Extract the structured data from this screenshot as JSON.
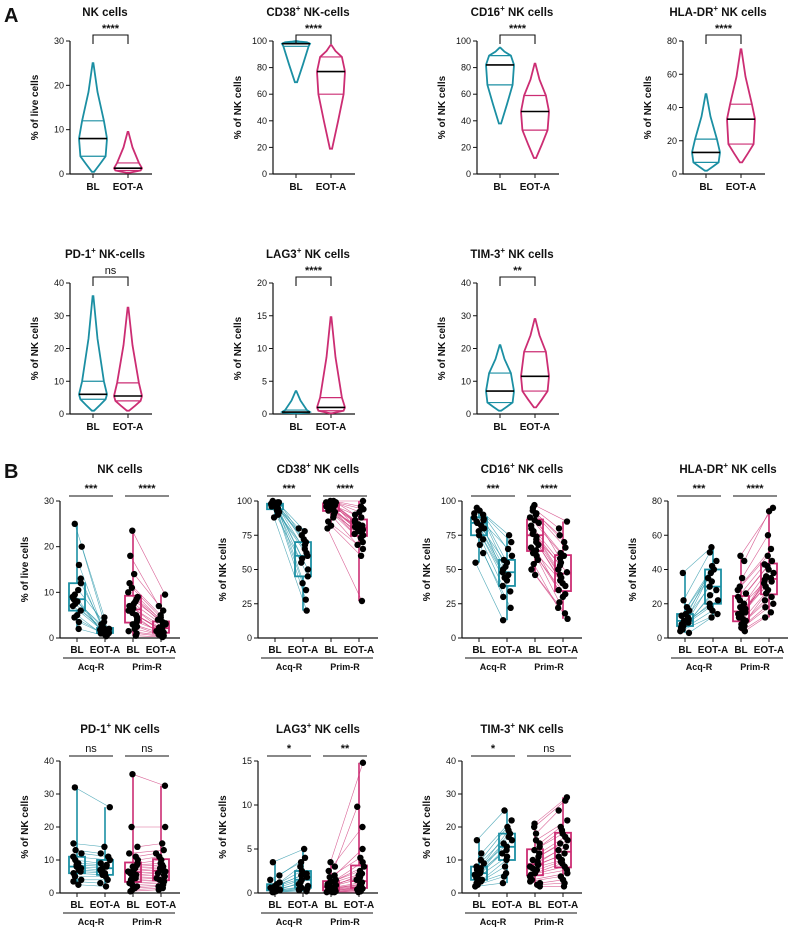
{
  "colors": {
    "bl": "#1b8fa3",
    "eot": "#cc2d73",
    "dot": "#000000",
    "axis": "#111111"
  },
  "panelA": {
    "letter": "A",
    "categories": [
      "BL",
      "EOT-A"
    ],
    "charts": [
      {
        "title": "NK cells",
        "title_sup": "",
        "title_suffix": "",
        "ylabel": "% of live cells",
        "ylim": [
          0,
          30
        ],
        "yticks": [
          0,
          10,
          20,
          30
        ],
        "sig": "****",
        "groups": [
          {
            "min": 0.5,
            "q1": 4.0,
            "median": 8.0,
            "q3": 12.0,
            "max": 25.0
          },
          {
            "min": 0.3,
            "q1": 0.8,
            "median": 1.3,
            "q3": 2.5,
            "max": 9.5
          }
        ]
      },
      {
        "title": "CD38",
        "title_sup": "+",
        "title_suffix": " NK-cells",
        "ylabel": "% of NK cells",
        "ylim": [
          0,
          100
        ],
        "yticks": [
          0,
          20,
          40,
          60,
          80,
          100
        ],
        "sig": "****",
        "groups": [
          {
            "min": 69,
            "q1": 96,
            "median": 98,
            "q3": 99,
            "max": 100
          },
          {
            "min": 19,
            "q1": 60,
            "median": 77,
            "q3": 88,
            "max": 97
          }
        ]
      },
      {
        "title": "CD16",
        "title_sup": "+",
        "title_suffix": " NK cells",
        "ylabel": "% of NK cells",
        "ylim": [
          0,
          100
        ],
        "yticks": [
          0,
          20,
          40,
          60,
          80,
          100
        ],
        "sig": "****",
        "groups": [
          {
            "min": 38,
            "q1": 67,
            "median": 82,
            "q3": 89,
            "max": 95
          },
          {
            "min": 12,
            "q1": 33,
            "median": 47,
            "q3": 59,
            "max": 83
          }
        ]
      },
      {
        "title": "HLA-DR",
        "title_sup": "+",
        "title_suffix": " NK cells",
        "ylabel": "% of NK cells",
        "ylim": [
          0,
          80
        ],
        "yticks": [
          0,
          20,
          40,
          60,
          80
        ],
        "sig": "****",
        "groups": [
          {
            "min": 2,
            "q1": 7,
            "median": 13,
            "q3": 21,
            "max": 48
          },
          {
            "min": 7,
            "q1": 18,
            "median": 33,
            "q3": 42,
            "max": 75
          }
        ]
      },
      {
        "title": "PD-1",
        "title_sup": "+",
        "title_suffix": " NK-cells",
        "ylabel": "% of NK cells",
        "ylim": [
          0,
          40
        ],
        "yticks": [
          0,
          10,
          20,
          30,
          40
        ],
        "sig": "ns",
        "groups": [
          {
            "min": 1,
            "q1": 4.5,
            "median": 6.0,
            "q3": 10.0,
            "max": 36
          },
          {
            "min": 1,
            "q1": 4.0,
            "median": 5.5,
            "q3": 9.5,
            "max": 32.5
          }
        ]
      },
      {
        "title": "LAG3",
        "title_sup": "+",
        "title_suffix": " NK cells",
        "ylabel": "% of NK cells",
        "ylim": [
          0,
          20
        ],
        "yticks": [
          0,
          5,
          10,
          15,
          20
        ],
        "sig": "****",
        "groups": [
          {
            "min": 0.1,
            "q1": 0.2,
            "median": 0.3,
            "q3": 0.6,
            "max": 3.5
          },
          {
            "min": 0.1,
            "q1": 0.5,
            "median": 1.0,
            "q3": 2.5,
            "max": 14.8
          }
        ]
      },
      {
        "title": "TIM-3",
        "title_sup": "+",
        "title_suffix": " NK cells",
        "ylabel": "% of NK cells",
        "ylim": [
          0,
          40
        ],
        "yticks": [
          0,
          10,
          20,
          30,
          40
        ],
        "sig": "**",
        "groups": [
          {
            "min": 1,
            "q1": 3.5,
            "median": 7.0,
            "q3": 12.5,
            "max": 21
          },
          {
            "min": 2,
            "q1": 7,
            "median": 11.5,
            "q3": 19,
            "max": 29
          }
        ]
      }
    ]
  },
  "panelB": {
    "letter": "B",
    "categories": [
      "BL",
      "EOT-A"
    ],
    "groups": [
      "Acq-R",
      "Prim-R"
    ],
    "charts": [
      {
        "title": "NK cells",
        "title_sup": "",
        "title_suffix": "",
        "ylabel": "% of live cells",
        "ylim": [
          0,
          30
        ],
        "yticks": [
          0,
          10,
          20,
          30
        ],
        "sig": [
          "***",
          "****"
        ],
        "acq": {
          "bl": [
            25.0,
            20.0,
            16.0,
            13.0,
            12.0,
            10.5,
            9.5,
            9.0,
            8.5,
            8.0,
            7.5,
            7.0,
            6.0,
            5.0,
            4.5,
            3.5,
            2.0
          ],
          "eot": [
            4.5,
            3.5,
            3.0,
            2.5,
            2.2,
            2.0,
            1.8,
            1.6,
            1.5,
            1.4,
            1.3,
            1.2,
            1.1,
            1.0,
            0.8,
            0.6,
            0.4
          ]
        },
        "prim": {
          "bl": [
            23.5,
            18.0,
            14.0,
            12.0,
            11.0,
            10.0,
            9.0,
            8.5,
            8.0,
            7.5,
            7.0,
            6.5,
            6.0,
            5.5,
            5.0,
            4.5,
            4.0,
            3.5,
            3.0,
            2.5,
            2.0,
            1.5,
            1.0,
            0.5
          ],
          "eot": [
            9.5,
            7.0,
            6.0,
            5.0,
            4.5,
            4.0,
            3.5,
            3.2,
            3.0,
            2.8,
            2.5,
            2.3,
            2.0,
            1.8,
            1.6,
            1.5,
            1.3,
            1.2,
            1.0,
            0.8,
            0.6,
            0.5,
            0.3,
            0.2
          ]
        }
      },
      {
        "title": "CD38",
        "title_sup": "+",
        "title_suffix": " NK cells",
        "ylabel": "% of NK cells",
        "ylim": [
          0,
          100
        ],
        "yticks": [
          0,
          25,
          50,
          75,
          100
        ],
        "sig": [
          "***",
          "****"
        ],
        "acq": {
          "bl": [
            100,
            99,
            99,
            99,
            98,
            98,
            98,
            97,
            97,
            96,
            96,
            95,
            94,
            93,
            92,
            90,
            88
          ],
          "eot": [
            80,
            78,
            75,
            72,
            70,
            68,
            65,
            62,
            60,
            58,
            55,
            50,
            45,
            40,
            35,
            28,
            20
          ]
        },
        "prim": {
          "bl": [
            100,
            100,
            99,
            99,
            99,
            99,
            98,
            98,
            98,
            97,
            97,
            97,
            96,
            96,
            95,
            95,
            94,
            93,
            92,
            90,
            88,
            85,
            82,
            80
          ],
          "eot": [
            100,
            96,
            94,
            92,
            90,
            88,
            86,
            85,
            84,
            83,
            82,
            81,
            80,
            79,
            78,
            77,
            76,
            75,
            73,
            70,
            68,
            65,
            60,
            27
          ]
        }
      },
      {
        "title": "CD16",
        "title_sup": "+",
        "title_suffix": " NK cells",
        "ylabel": "% of NK cells",
        "ylim": [
          0,
          100
        ],
        "yticks": [
          0,
          25,
          50,
          75,
          100
        ],
        "sig": [
          "***",
          "****"
        ],
        "acq": {
          "bl": [
            95,
            93,
            91,
            90,
            88,
            87,
            86,
            85,
            84,
            82,
            80,
            78,
            75,
            72,
            68,
            62,
            55
          ],
          "eot": [
            75,
            70,
            65,
            60,
            57,
            55,
            52,
            50,
            48,
            46,
            44,
            42,
            38,
            34,
            30,
            22,
            13
          ]
        },
        "prim": {
          "bl": [
            97,
            95,
            93,
            91,
            90,
            88,
            86,
            84,
            82,
            80,
            78,
            76,
            74,
            72,
            70,
            68,
            66,
            64,
            62,
            60,
            57,
            54,
            50,
            46
          ],
          "eot": [
            85,
            80,
            75,
            70,
            66,
            62,
            60,
            58,
            55,
            53,
            50,
            48,
            46,
            44,
            42,
            40,
            38,
            35,
            32,
            30,
            26,
            22,
            18,
            14
          ]
        }
      },
      {
        "title": "HLA-DR",
        "title_sup": "+",
        "title_suffix": " NK cells",
        "ylabel": "% of NK cells",
        "ylim": [
          0,
          80
        ],
        "yticks": [
          0,
          20,
          40,
          60,
          80
        ],
        "sig": [
          "***",
          "****"
        ],
        "acq": {
          "bl": [
            38,
            22,
            18,
            16,
            14,
            13,
            12,
            11,
            10,
            9.5,
            9,
            8,
            7,
            6,
            5,
            4,
            3
          ],
          "eot": [
            53,
            50,
            45,
            42,
            40,
            38,
            35,
            33,
            30,
            28,
            25,
            22,
            20,
            18,
            16,
            14,
            12
          ]
        },
        "prim": {
          "bl": [
            48,
            45,
            35,
            30,
            28,
            26,
            24,
            22,
            20,
            18,
            17,
            16,
            15,
            14,
            13,
            12,
            11,
            10,
            9,
            8,
            7,
            6,
            5,
            4
          ],
          "eot": [
            76,
            74,
            60,
            52,
            48,
            45,
            43,
            42,
            40,
            38,
            36,
            35,
            34,
            33,
            32,
            30,
            28,
            26,
            24,
            22,
            20,
            18,
            15,
            12
          ]
        }
      },
      {
        "title": "PD-1",
        "title_sup": "+",
        "title_suffix": " NK cells",
        "ylabel": "% of NK cells",
        "ylim": [
          0,
          40
        ],
        "yticks": [
          0,
          10,
          20,
          30,
          40
        ],
        "sig": [
          "ns",
          "ns"
        ],
        "acq": {
          "bl": [
            32,
            15,
            13,
            12,
            11,
            10,
            9,
            8.5,
            8,
            7.5,
            7,
            6.5,
            6,
            5,
            4,
            3.5,
            2.5
          ],
          "eot": [
            26,
            14,
            12,
            11,
            10,
            9,
            8.5,
            8,
            7.5,
            7,
            6.5,
            6,
            5.5,
            5,
            4,
            3,
            2
          ]
        },
        "prim": {
          "bl": [
            36,
            20,
            14,
            12,
            11,
            10,
            9,
            8.5,
            8,
            7.5,
            7,
            6.5,
            6,
            5.5,
            5,
            4.5,
            4,
            3.5,
            3,
            2.5,
            2,
            1.5,
            1,
            0.5
          ],
          "eot": [
            32.5,
            20,
            15,
            13,
            12,
            11,
            10,
            9,
            8.5,
            8,
            7.5,
            7,
            6.5,
            6,
            5.5,
            5,
            4.5,
            4,
            3.5,
            3,
            2.5,
            2,
            1.5,
            1
          ]
        }
      },
      {
        "title": "LAG3",
        "title_sup": "+",
        "title_suffix": " NK cells",
        "ylabel": "% of NK cells",
        "ylim": [
          0,
          15
        ],
        "yticks": [
          0,
          5,
          10,
          15
        ],
        "sig": [
          "*",
          "**"
        ],
        "acq": {
          "bl": [
            3.5,
            2.0,
            1.5,
            1.2,
            1.0,
            0.8,
            0.7,
            0.6,
            0.5,
            0.4,
            0.4,
            0.3,
            0.3,
            0.2,
            0.2,
            0.1,
            0.1
          ],
          "eot": [
            5.0,
            4.0,
            3.5,
            3.0,
            2.5,
            2.2,
            2.0,
            1.8,
            1.5,
            1.2,
            1.0,
            0.8,
            0.6,
            0.5,
            0.4,
            0.3,
            0.2
          ]
        },
        "prim": {
          "bl": [
            3.5,
            3.0,
            2.5,
            2.0,
            1.8,
            1.5,
            1.3,
            1.2,
            1.0,
            0.9,
            0.8,
            0.7,
            0.6,
            0.5,
            0.5,
            0.4,
            0.4,
            0.3,
            0.3,
            0.2,
            0.2,
            0.1,
            0.1,
            0.1
          ],
          "eot": [
            14.8,
            9.8,
            7.5,
            5.0,
            4.0,
            3.5,
            3.0,
            2.5,
            2.2,
            2.0,
            1.8,
            1.5,
            1.2,
            1.0,
            0.9,
            0.8,
            0.7,
            0.6,
            0.5,
            0.4,
            0.3,
            0.3,
            0.2,
            0.1
          ]
        }
      },
      {
        "title": "TIM-3",
        "title_sup": "+",
        "title_suffix": " NK cells",
        "ylabel": "% of NK cells",
        "ylim": [
          0,
          40
        ],
        "yticks": [
          0,
          10,
          20,
          30,
          40
        ],
        "sig": [
          "*",
          "ns"
        ],
        "acq": {
          "bl": [
            16,
            12,
            10,
            9,
            8,
            7.5,
            7,
            6.5,
            6,
            5.5,
            5,
            4.5,
            4,
            3.5,
            3,
            2.5,
            2
          ],
          "eot": [
            25,
            22,
            20,
            19,
            18,
            17,
            16,
            15,
            14,
            13,
            12,
            11,
            10,
            8,
            6,
            5,
            3
          ]
        },
        "prim": {
          "bl": [
            21,
            20,
            18,
            16,
            15,
            14,
            13,
            12,
            11,
            10,
            9.5,
            9,
            8.5,
            8,
            7.5,
            7,
            6,
            5.5,
            5,
            4,
            3.5,
            3,
            2.5,
            2
          ],
          "eot": [
            29,
            28,
            25,
            22,
            20,
            19,
            18,
            17,
            16,
            15,
            14,
            13,
            12,
            11,
            10,
            9.5,
            9,
            8,
            7,
            6,
            5,
            4,
            3,
            2
          ]
        }
      }
    ]
  }
}
